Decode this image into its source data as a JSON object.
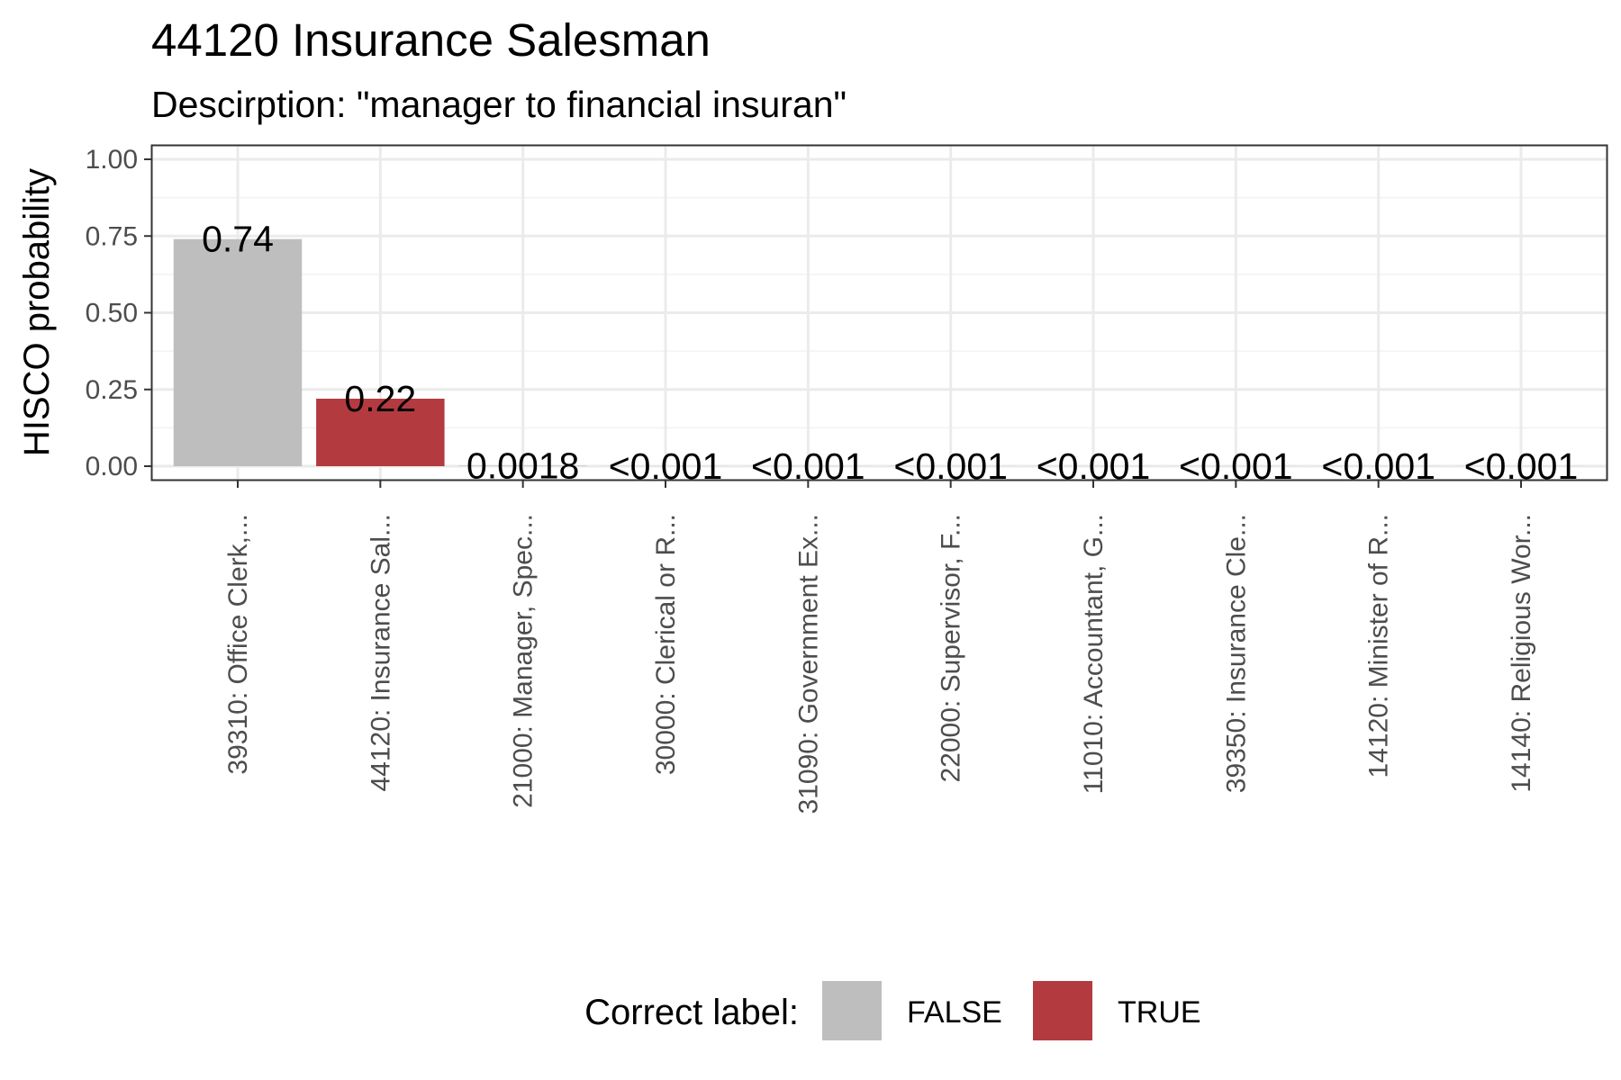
{
  "title": "44120 Insurance Salesman",
  "subtitle": "Descirption: \"manager to financial  insuran\"",
  "chart_data": {
    "type": "bar",
    "title": "44120 Insurance Salesman",
    "subtitle": "Descirption: \"manager to financial  insuran\"",
    "xlabel": "",
    "ylabel": "HISCO probability",
    "ylim": [
      0,
      1
    ],
    "yticks": [
      "0.00",
      "0.25",
      "0.50",
      "0.75",
      "1.00"
    ],
    "grid": true,
    "categories": [
      "39310: Office Clerk,...",
      "44120: Insurance Sal...",
      "21000: Manager, Spec...",
      "30000: Clerical or R...",
      "31090: Government Ex...",
      "22000: Supervisor, F...",
      "11010: Accountant, G...",
      "39350: Insurance Cle...",
      "14120: Minister of R...",
      "14140: Religious Wor..."
    ],
    "values": [
      0.74,
      0.22,
      0.0018,
      0.0005,
      0.0005,
      0.0005,
      0.0005,
      0.0005,
      0.0005,
      0.0005
    ],
    "labels": [
      "0.74",
      "0.22",
      "0.0018",
      "<0.001",
      "<0.001",
      "<0.001",
      "<0.001",
      "<0.001",
      "<0.001",
      "<0.001"
    ],
    "correct": [
      false,
      true,
      false,
      false,
      false,
      false,
      false,
      false,
      false,
      false
    ],
    "legend": {
      "title": "Correct label:",
      "placement": "bottom",
      "items": [
        {
          "label": "FALSE",
          "color": "#bebebe"
        },
        {
          "label": "TRUE",
          "color": "#b33b3f"
        }
      ]
    }
  }
}
